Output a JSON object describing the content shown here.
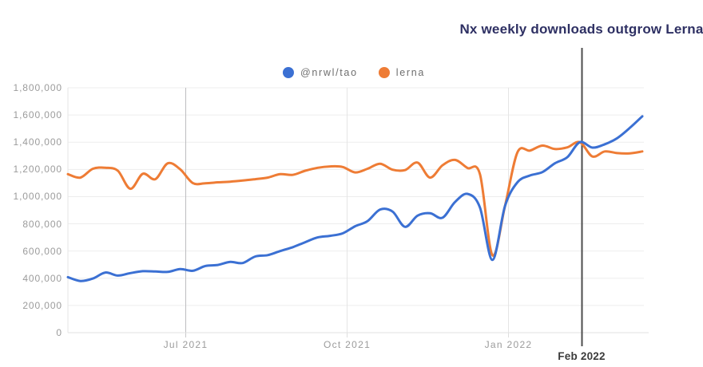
{
  "title": "Nx weekly downloads outgrow Lerna",
  "annotation": {
    "label": "Feb 2022",
    "index": 41.17
  },
  "chart_data": {
    "type": "line",
    "title": "Nx weekly downloads outgrow Lerna",
    "x_unit": "week",
    "n_points": 47,
    "ylim": [
      0,
      1800000
    ],
    "y_tick_step": 200000,
    "y_tick_labels": [
      "0",
      "200,000",
      "400,000",
      "600,000",
      "800,000",
      "1,000,000",
      "1,200,000",
      "1,400,000",
      "1,600,000",
      "1,800,000"
    ],
    "x_ticks": [
      {
        "label": "Jul 2021",
        "index": 9.4,
        "strong": true
      },
      {
        "label": "Oct 2021",
        "index": 22.35,
        "strong": false
      },
      {
        "label": "Jan 2022",
        "index": 35.28,
        "strong": false
      }
    ],
    "grid": true,
    "legend_position": "top",
    "series": [
      {
        "name": "@nrwl/tao",
        "color": "#3b70d3",
        "values": [
          408000,
          380000,
          398000,
          442000,
          420000,
          438000,
          452000,
          450000,
          447000,
          468000,
          455000,
          490000,
          498000,
          520000,
          512000,
          560000,
          570000,
          600000,
          628000,
          665000,
          700000,
          712000,
          730000,
          782000,
          820000,
          905000,
          890000,
          778000,
          860000,
          878000,
          845000,
          960000,
          1020000,
          920000,
          535000,
          930000,
          1105000,
          1155000,
          1180000,
          1245000,
          1290000,
          1400000,
          1360000,
          1385000,
          1430000,
          1505000,
          1590000
        ]
      },
      {
        "name": "lerna",
        "color": "#ee7c35",
        "values": [
          1165000,
          1140000,
          1205000,
          1212000,
          1190000,
          1058000,
          1168000,
          1128000,
          1245000,
          1200000,
          1100000,
          1098000,
          1105000,
          1110000,
          1118000,
          1128000,
          1140000,
          1165000,
          1160000,
          1190000,
          1212000,
          1222000,
          1218000,
          1178000,
          1205000,
          1242000,
          1198000,
          1195000,
          1250000,
          1140000,
          1230000,
          1270000,
          1210000,
          1165000,
          570000,
          930000,
          1325000,
          1338000,
          1375000,
          1350000,
          1362000,
          1400000,
          1295000,
          1332000,
          1320000,
          1318000,
          1332000
        ]
      }
    ],
    "annotation_line": {
      "label": "Feb 2022",
      "index": 41.17
    }
  },
  "colors": {
    "title": "#2e3063",
    "axis_label": "#9b9b9b",
    "grid": "#ededed",
    "axis_line": "#e2e2e2",
    "strong_gridline": "#bdbdc0",
    "annotation_line": "#4d4d4d"
  }
}
